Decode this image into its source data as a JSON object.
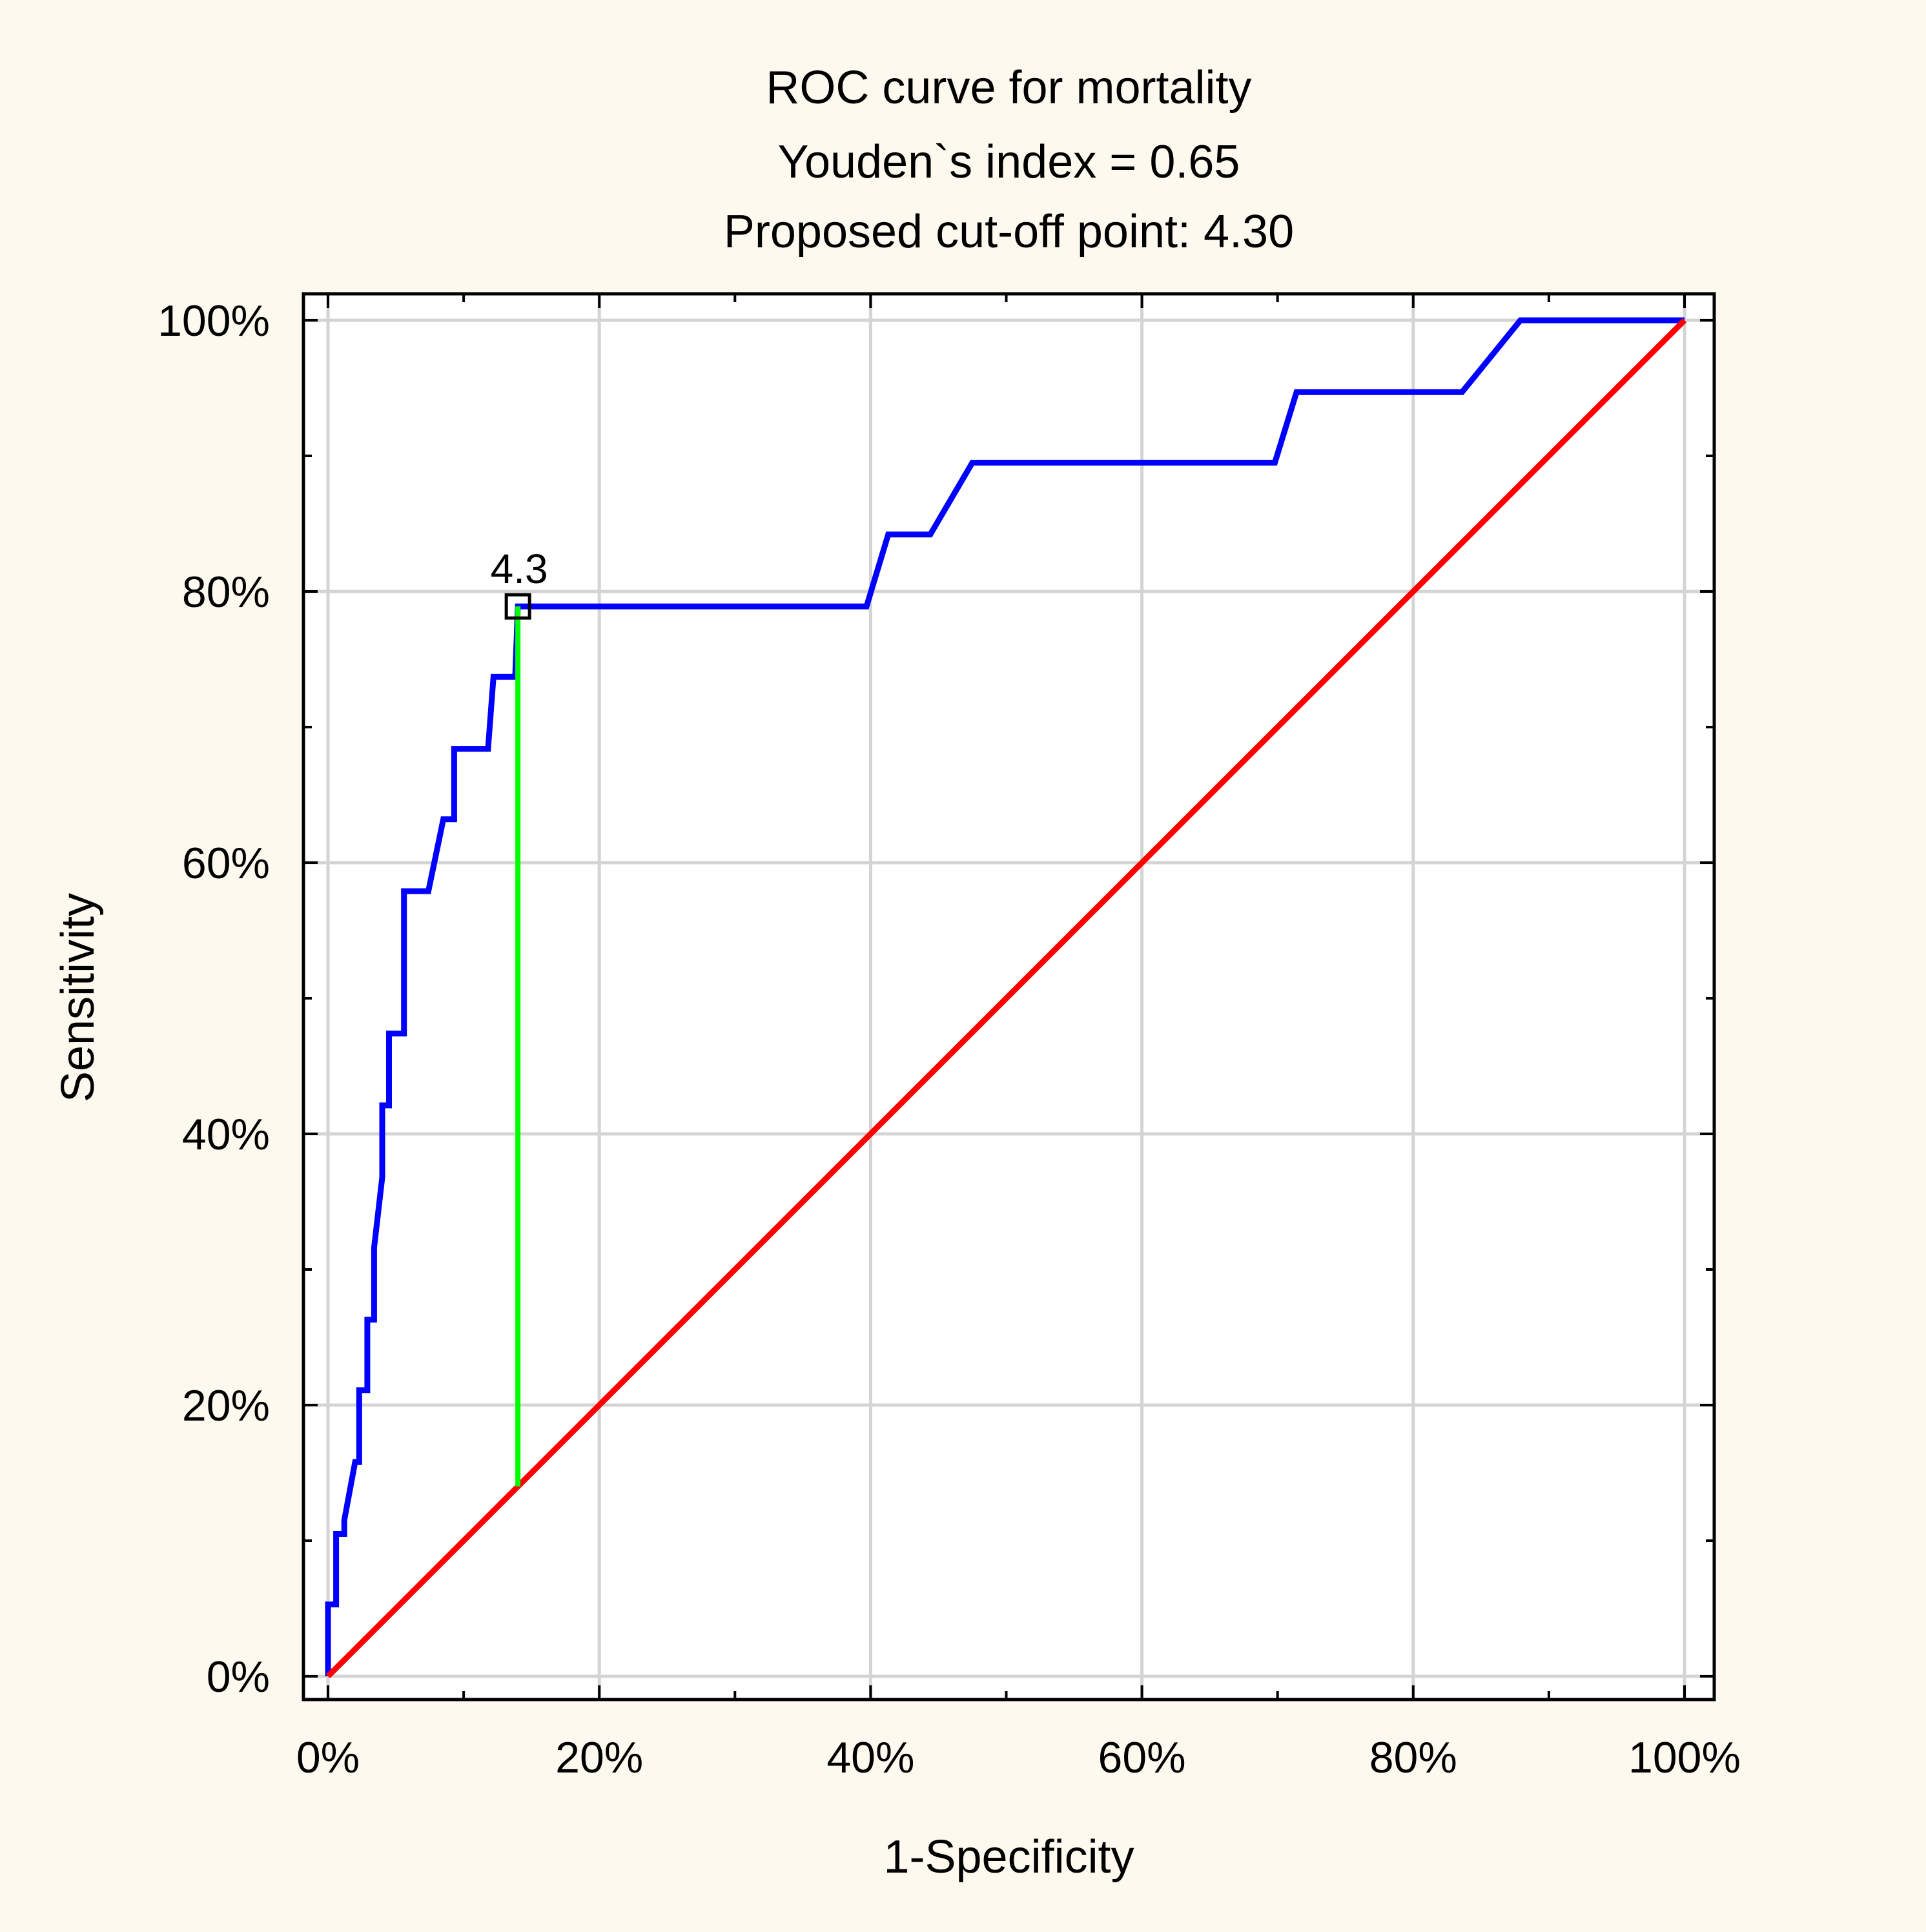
{
  "chart_data": {
    "type": "line",
    "title": "ROC curve for mortality",
    "subtitle_lines": [
      "Youden`s index = 0.65",
      "Proposed cut-off point: 4.30"
    ],
    "xlabel": "1-Specificity",
    "ylabel": "Sensitivity",
    "xlim": [
      0,
      100
    ],
    "ylim": [
      0,
      100
    ],
    "x_ticks": [
      0,
      20,
      40,
      60,
      80,
      100
    ],
    "x_tick_labels": [
      "0%",
      "20%",
      "40%",
      "60%",
      "80%",
      "100%"
    ],
    "y_ticks": [
      0,
      20,
      40,
      60,
      80,
      100
    ],
    "y_tick_labels": [
      "0%",
      "20%",
      "40%",
      "60%",
      "80%",
      "100%"
    ],
    "grid": true,
    "legend": "none",
    "series": [
      {
        "color": "#0000ff",
        "x": [
          0,
          0,
          0.6,
          0.6,
          1.2,
          1.2,
          2.0,
          2.3,
          2.3,
          2.9,
          2.9,
          3.4,
          3.4,
          4.0,
          4.0,
          4.5,
          4.5,
          5.6,
          5.6,
          6.9,
          6.9,
          7.4,
          8.5,
          9.3,
          9.3,
          9.8,
          11.8,
          12.2,
          12.2,
          13.8,
          14.0,
          14.0,
          39.7,
          41.3,
          44.4,
          47.5,
          69.8,
          71.4,
          83.6,
          87.9,
          100
        ],
        "y": [
          0,
          5.3,
          5.3,
          10.5,
          10.5,
          11.5,
          15.8,
          15.8,
          21.1,
          21.1,
          26.3,
          26.3,
          31.6,
          36.8,
          42.1,
          42.1,
          47.4,
          47.4,
          57.9,
          57.9,
          57.9,
          57.9,
          63.2,
          63.2,
          68.4,
          68.4,
          68.4,
          73.7,
          73.7,
          73.7,
          78.9,
          78.9,
          78.9,
          84.2,
          84.2,
          89.5,
          89.5,
          94.7,
          94.7,
          100,
          100
        ]
      },
      {
        "color": "#ff0000",
        "x": [
          0,
          100
        ],
        "y": [
          0,
          100
        ]
      },
      {
        "color": "#00ff00",
        "x": [
          14.0,
          14.0
        ],
        "y": [
          14.0,
          78.9
        ]
      }
    ],
    "annotations": [
      {
        "text": "4.3",
        "x": 14.0,
        "y": 78.9
      }
    ]
  }
}
